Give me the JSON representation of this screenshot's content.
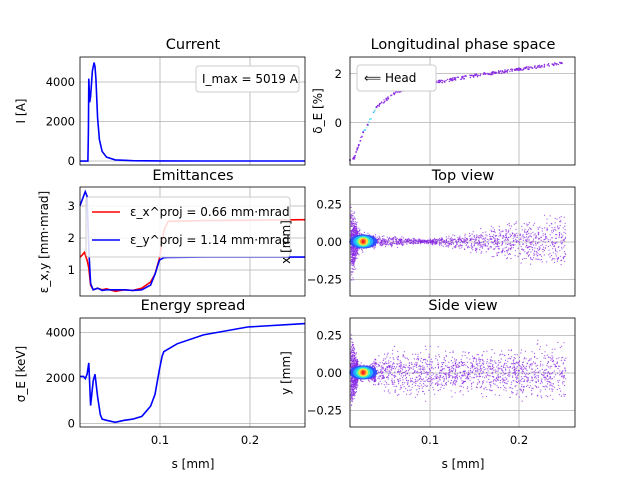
{
  "figure": {
    "panels": {
      "current": {
        "title": "Current",
        "ylabel": "I [A]",
        "annotation": "I_max = 5019 A",
        "yticks": [
          "0",
          "2000",
          "4000"
        ],
        "xticks": []
      },
      "phase": {
        "title": "Longitudinal phase space",
        "ylabel": "δ_E [%]",
        "legend": "⟸ Head",
        "yticks": [
          "0",
          "2"
        ],
        "xticks": []
      },
      "emit": {
        "title": "Emittances",
        "ylabel": "ε_x,y [mm·mrad]",
        "yticks": [
          "1",
          "2",
          "3"
        ],
        "legend": [
          "ε_x^proj = 0.66 mm·mrad",
          "ε_y^proj = 1.14 mm·mrad"
        ],
        "xticks": []
      },
      "top": {
        "title": "Top view",
        "ylabel": "x [mm]",
        "yticks": [
          "−0.25",
          "0.00",
          "0.25"
        ],
        "xticks": []
      },
      "espread": {
        "title": "Energy spread",
        "ylabel": "σ_E [keV]",
        "xlabel": "s [mm]",
        "yticks": [
          "0",
          "2000",
          "4000"
        ],
        "xticks": [
          "0.1",
          "0.2"
        ]
      },
      "side": {
        "title": "Side view",
        "ylabel": "y [mm]",
        "xlabel": "s [mm]",
        "yticks": [
          "−0.25",
          "0.00",
          "0.25"
        ],
        "xticks": [
          "0.1",
          "0.2"
        ]
      }
    }
  },
  "colors": {
    "blue": "#0000ff",
    "red": "#ff0000",
    "purple": "#8a2be2"
  },
  "chart_data": [
    {
      "type": "line",
      "title": "Current",
      "ylabel": "I [A]",
      "xlim": [
        0.01,
        0.265
      ],
      "ylim": [
        -200,
        5300
      ],
      "series": [
        {
          "x": [
            0.01,
            0.019,
            0.0195,
            0.02,
            0.021,
            0.022,
            0.024,
            0.026,
            0.027,
            0.028,
            0.03,
            0.032,
            0.035,
            0.04,
            0.05,
            0.07,
            0.1,
            0.15,
            0.2,
            0.265
          ],
          "values": [
            0,
            0,
            1500,
            4200,
            3000,
            3300,
            4600,
            5019,
            4800,
            4200,
            2200,
            1100,
            500,
            200,
            60,
            20,
            10,
            5,
            3,
            2
          ]
        }
      ]
    },
    {
      "type": "scatter",
      "title": "Longitudinal phase space",
      "ylabel": "δ_E [%]",
      "xlim": [
        0.01,
        0.265
      ],
      "ylim": [
        -1.7,
        2.6
      ],
      "series": [
        {
          "x": [
            0.01,
            0.015,
            0.02,
            0.025,
            0.03,
            0.04,
            0.06,
            0.08,
            0.1,
            0.15,
            0.2,
            0.25
          ],
          "values": [
            -1.5,
            -1.4,
            -0.9,
            -0.4,
            -0.1,
            0.6,
            1.15,
            1.45,
            1.55,
            1.85,
            2.1,
            2.35
          ]
        }
      ]
    },
    {
      "type": "line",
      "title": "Emittances",
      "ylabel": "ε_x,y [mm·mrad]",
      "xlim": [
        0.01,
        0.265
      ],
      "ylim": [
        0.1,
        3.6
      ],
      "series": [
        {
          "name": "ε_x^proj = 0.66 mm·mrad",
          "x": [
            0.01,
            0.012,
            0.015,
            0.018,
            0.02,
            0.022,
            0.025,
            0.03,
            0.035,
            0.04,
            0.05,
            0.06,
            0.07,
            0.08,
            0.09,
            0.095,
            0.1,
            0.105,
            0.11,
            0.15,
            0.2,
            0.265
          ],
          "values": [
            1.35,
            1.4,
            1.5,
            1.25,
            1.0,
            0.45,
            0.3,
            0.35,
            0.3,
            0.33,
            0.25,
            0.3,
            0.28,
            0.35,
            0.55,
            0.8,
            1.3,
            2.2,
            2.5,
            2.52,
            2.53,
            2.55
          ]
        },
        {
          "name": "ε_y^proj = 1.14 mm·mrad",
          "x": [
            0.01,
            0.014,
            0.016,
            0.018,
            0.02,
            0.022,
            0.025,
            0.03,
            0.035,
            0.04,
            0.05,
            0.06,
            0.07,
            0.08,
            0.09,
            0.095,
            0.1,
            0.105,
            0.11,
            0.15,
            0.2,
            0.265
          ],
          "values": [
            3.0,
            3.3,
            3.45,
            3.3,
            1.6,
            0.5,
            0.3,
            0.35,
            0.28,
            0.3,
            0.3,
            0.3,
            0.28,
            0.3,
            0.45,
            0.8,
            1.25,
            1.33,
            1.34,
            1.35,
            1.35,
            1.35
          ]
        }
      ]
    },
    {
      "type": "scatter",
      "title": "Top view",
      "ylabel": "x [mm]",
      "xlim": [
        0.01,
        0.265
      ],
      "ylim": [
        -0.36,
        0.36
      ],
      "envelope": {
        "x": [
          0.012,
          0.02,
          0.03,
          0.05,
          0.07,
          0.09,
          0.1,
          0.12,
          0.15,
          0.2,
          0.25
        ],
        "half_width": [
          0.32,
          0.1,
          0.06,
          0.05,
          0.04,
          0.02,
          0.02,
          0.05,
          0.09,
          0.17,
          0.25
        ]
      },
      "core": {
        "x": 0.025,
        "y": 0.0
      }
    },
    {
      "type": "line",
      "title": "Energy spread",
      "ylabel": "σ_E [keV]",
      "xlabel": "s [mm]",
      "xlim": [
        0.01,
        0.265
      ],
      "ylim": [
        -150,
        4700
      ],
      "series": [
        {
          "x": [
            0.01,
            0.014,
            0.016,
            0.018,
            0.02,
            0.022,
            0.025,
            0.027,
            0.03,
            0.033,
            0.035,
            0.04,
            0.05,
            0.06,
            0.07,
            0.08,
            0.085,
            0.09,
            0.095,
            0.1,
            0.103,
            0.105,
            0.12,
            0.15,
            0.2,
            0.265
          ],
          "values": [
            2100,
            2100,
            2000,
            2200,
            2700,
            800,
            1900,
            2200,
            1200,
            400,
            200,
            150,
            60,
            150,
            200,
            320,
            550,
            780,
            1300,
            2400,
            3000,
            3200,
            3550,
            3950,
            4300,
            4450
          ]
        }
      ]
    },
    {
      "type": "scatter",
      "title": "Side view",
      "ylabel": "y [mm]",
      "xlabel": "s [mm]",
      "xlim": [
        0.01,
        0.265
      ],
      "ylim": [
        -0.36,
        0.36
      ],
      "envelope": {
        "x": [
          0.012,
          0.02,
          0.03,
          0.05,
          0.07,
          0.09,
          0.1,
          0.12,
          0.15,
          0.2,
          0.25
        ],
        "half_width": [
          0.3,
          0.08,
          0.05,
          0.2,
          0.2,
          0.2,
          0.2,
          0.18,
          0.18,
          0.22,
          0.25
        ]
      },
      "core": {
        "x": 0.025,
        "y": 0.0
      }
    }
  ]
}
